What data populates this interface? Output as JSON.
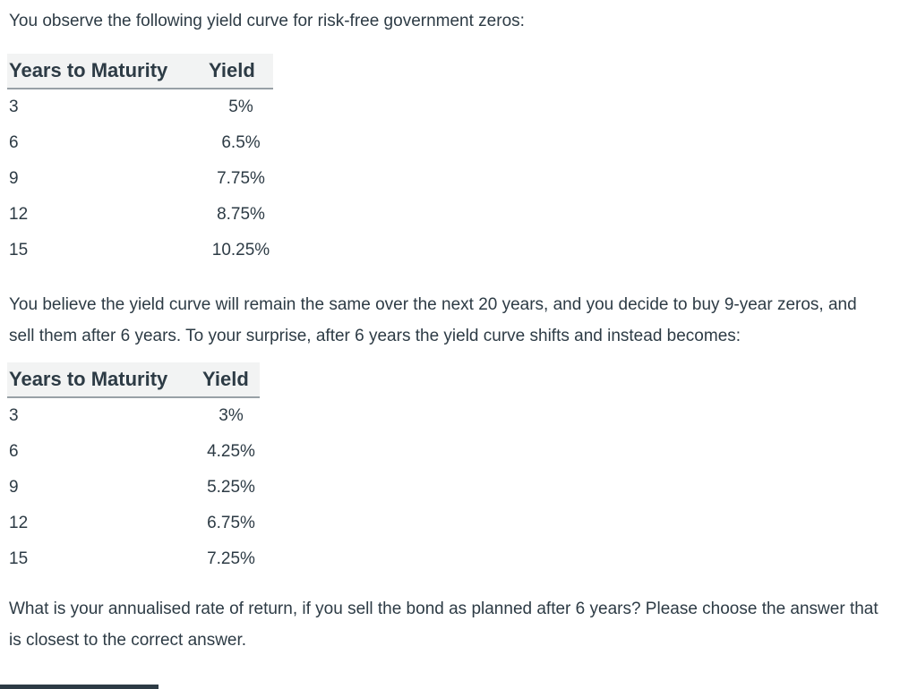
{
  "document": {
    "intro": "You observe the following yield curve for risk-free government zeros:",
    "shift_paragraph": "You believe the yield curve will remain the same over the next 20 years, and you decide to buy 9-year zeros, and sell them after 6 years. To your surprise, after 6 years the yield curve shifts and instead becomes:",
    "question": "What is your annualised rate of return, if you sell the bond as planned after 6 years? Please choose the answer that is closest to the correct answer."
  },
  "tables": [
    {
      "headers": [
        "Years to Maturity",
        "Yield"
      ],
      "rows": [
        [
          "3",
          "5%"
        ],
        [
          "6",
          "6.5%"
        ],
        [
          "9",
          "7.75%"
        ],
        [
          "12",
          "8.75%"
        ],
        [
          "15",
          "10.25%"
        ]
      ]
    },
    {
      "headers": [
        "Years to Maturity",
        "Yield"
      ],
      "rows": [
        [
          "3",
          "3%"
        ],
        [
          "6",
          "4.25%"
        ],
        [
          "9",
          "5.25%"
        ],
        [
          "12",
          "6.75%"
        ],
        [
          "15",
          "7.25%"
        ]
      ]
    }
  ],
  "colors": {
    "text": "#2D3B45",
    "table_header_bg": "#f2f3f3",
    "table_header_border": "#98a0a6",
    "partial_element_bar": "#2D3B45",
    "background": "#ffffff"
  }
}
